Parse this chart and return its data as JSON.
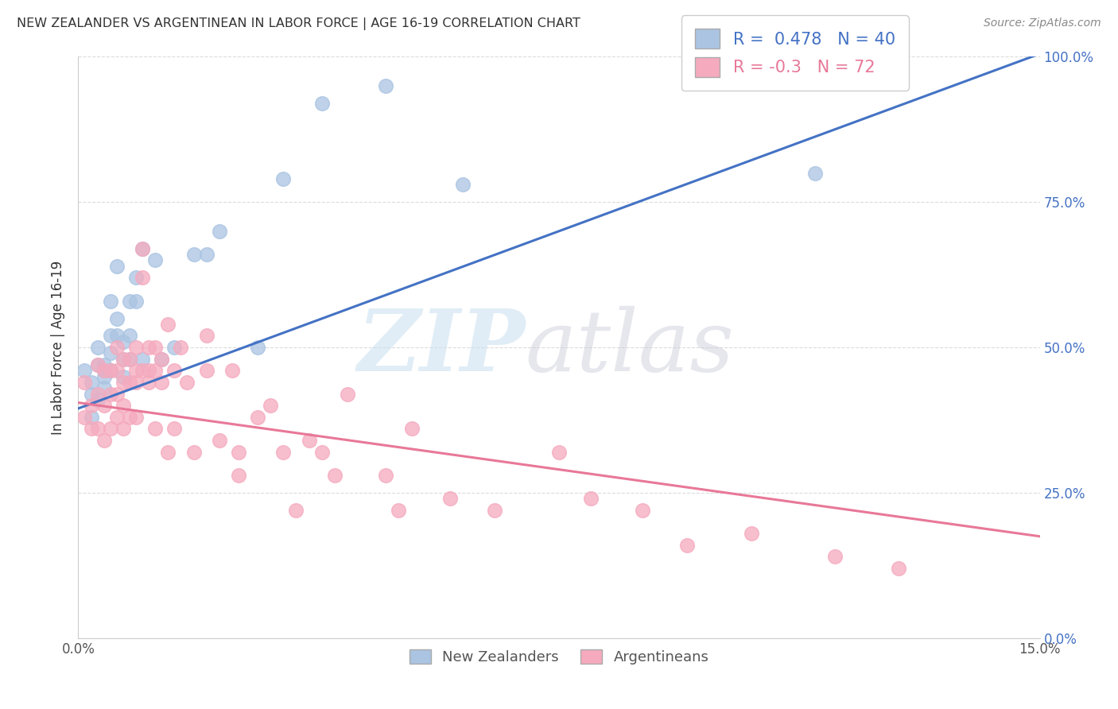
{
  "title": "NEW ZEALANDER VS ARGENTINEAN IN LABOR FORCE | AGE 16-19 CORRELATION CHART",
  "source": "Source: ZipAtlas.com",
  "ylabel": "In Labor Force | Age 16-19",
  "xlim": [
    0.0,
    0.15
  ],
  "ylim": [
    0.0,
    1.0
  ],
  "xticks": [
    0.0,
    0.025,
    0.05,
    0.075,
    0.1,
    0.125,
    0.15
  ],
  "xtick_labels": [
    "0.0%",
    "",
    "",
    "",
    "",
    "",
    "15.0%"
  ],
  "ytick_labels_right": [
    "100.0%",
    "75.0%",
    "50.0%",
    "25.0%",
    "0.0%"
  ],
  "yticks_right": [
    1.0,
    0.75,
    0.5,
    0.25,
    0.0
  ],
  "nz_r": 0.478,
  "nz_n": 40,
  "arg_r": -0.3,
  "arg_n": 72,
  "nz_color": "#aac4e2",
  "arg_color": "#f5aabe",
  "nz_edge_color": "#aac4e2",
  "arg_edge_color": "#f5aabe",
  "nz_line_color": "#4472c4",
  "arg_line_color": "#e87898",
  "background_color": "#ffffff",
  "grid_color": "#cccccc",
  "nz_line": [
    [
      0.0,
      0.395
    ],
    [
      0.15,
      1.005
    ]
  ],
  "arg_line": [
    [
      0.0,
      0.405
    ],
    [
      0.15,
      0.175
    ]
  ],
  "nz_x": [
    0.001,
    0.002,
    0.002,
    0.002,
    0.003,
    0.003,
    0.003,
    0.004,
    0.004,
    0.004,
    0.004,
    0.005,
    0.005,
    0.005,
    0.005,
    0.006,
    0.006,
    0.006,
    0.007,
    0.007,
    0.007,
    0.008,
    0.008,
    0.008,
    0.009,
    0.009,
    0.01,
    0.01,
    0.012,
    0.013,
    0.015,
    0.018,
    0.02,
    0.022,
    0.028,
    0.032,
    0.038,
    0.048,
    0.06,
    0.115
  ],
  "nz_y": [
    0.46,
    0.44,
    0.42,
    0.38,
    0.5,
    0.47,
    0.41,
    0.47,
    0.46,
    0.45,
    0.43,
    0.52,
    0.49,
    0.46,
    0.58,
    0.55,
    0.52,
    0.64,
    0.51,
    0.48,
    0.45,
    0.58,
    0.52,
    0.48,
    0.62,
    0.58,
    0.67,
    0.48,
    0.65,
    0.48,
    0.5,
    0.66,
    0.66,
    0.7,
    0.5,
    0.79,
    0.92,
    0.95,
    0.78,
    0.8
  ],
  "arg_x": [
    0.001,
    0.001,
    0.002,
    0.002,
    0.003,
    0.003,
    0.003,
    0.004,
    0.004,
    0.004,
    0.005,
    0.005,
    0.005,
    0.006,
    0.006,
    0.006,
    0.006,
    0.007,
    0.007,
    0.007,
    0.007,
    0.008,
    0.008,
    0.008,
    0.009,
    0.009,
    0.009,
    0.009,
    0.01,
    0.01,
    0.01,
    0.011,
    0.011,
    0.011,
    0.012,
    0.012,
    0.012,
    0.013,
    0.013,
    0.014,
    0.014,
    0.015,
    0.015,
    0.016,
    0.017,
    0.018,
    0.02,
    0.02,
    0.022,
    0.024,
    0.025,
    0.025,
    0.028,
    0.03,
    0.032,
    0.034,
    0.036,
    0.038,
    0.04,
    0.042,
    0.048,
    0.05,
    0.052,
    0.058,
    0.065,
    0.075,
    0.08,
    0.088,
    0.095,
    0.105,
    0.118,
    0.128
  ],
  "arg_y": [
    0.44,
    0.38,
    0.4,
    0.36,
    0.47,
    0.42,
    0.36,
    0.46,
    0.4,
    0.34,
    0.46,
    0.42,
    0.36,
    0.5,
    0.46,
    0.42,
    0.38,
    0.48,
    0.44,
    0.4,
    0.36,
    0.48,
    0.44,
    0.38,
    0.5,
    0.46,
    0.44,
    0.38,
    0.67,
    0.62,
    0.46,
    0.5,
    0.46,
    0.44,
    0.5,
    0.46,
    0.36,
    0.48,
    0.44,
    0.54,
    0.32,
    0.46,
    0.36,
    0.5,
    0.44,
    0.32,
    0.52,
    0.46,
    0.34,
    0.46,
    0.32,
    0.28,
    0.38,
    0.4,
    0.32,
    0.22,
    0.34,
    0.32,
    0.28,
    0.42,
    0.28,
    0.22,
    0.36,
    0.24,
    0.22,
    0.32,
    0.24,
    0.22,
    0.16,
    0.18,
    0.14,
    0.12
  ]
}
